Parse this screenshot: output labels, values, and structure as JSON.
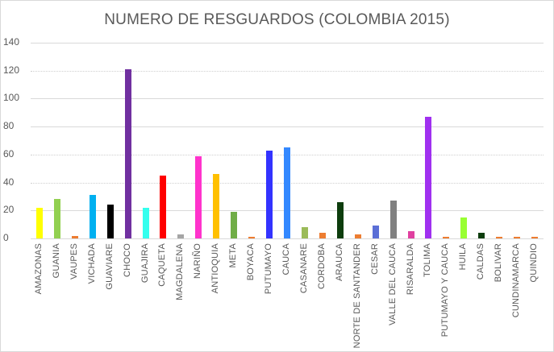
{
  "chart_data": {
    "type": "bar",
    "title": "NUMERO DE RESGUARDOS (COLOMBIA 2015)",
    "xlabel": "",
    "ylabel": "",
    "ylim": [
      0,
      140
    ],
    "yticks": [
      0,
      20,
      40,
      60,
      80,
      100,
      120,
      140
    ],
    "grid": true,
    "legend": "none",
    "categories": [
      "AMAZONAS",
      "GUANIA",
      "VAUPES",
      "VICHADA",
      "GUAVIARE",
      "CHOCO",
      "GUAJIRA",
      "CAQUETA",
      "MAGDALENA",
      "NARIÑO",
      "ANTIOQUIA",
      "META",
      "BOYACA",
      "PUTUMAYO",
      "CAUCA",
      "CASANARE",
      "CORDOBA",
      "ARAUCA",
      "NORTE DE SANTANDER",
      "CESAR",
      "VALLE DEL CAUCA",
      "RISARALDA",
      "TOLIMA",
      "PUTUMAYO Y CAUCA",
      "HUILA",
      "CALDAS",
      "BOLIVAR",
      "CUNDINAMARCA",
      "QUINDIO"
    ],
    "values": [
      22,
      28,
      2,
      31,
      24,
      121,
      22,
      45,
      3,
      59,
      46,
      19,
      1,
      63,
      65,
      8,
      4,
      26,
      3,
      9,
      27,
      5,
      87,
      1,
      15,
      4,
      1,
      1,
      1
    ],
    "colors": [
      "#ffff00",
      "#92d050",
      "#ed7d31",
      "#00b0f0",
      "#000000",
      "#7030a0",
      "#33ffee",
      "#ff0000",
      "#a5a5a5",
      "#ff33cc",
      "#ffc000",
      "#70ad47",
      "#ed7d31",
      "#3333ff",
      "#3388ff",
      "#9bbb59",
      "#ed7d31",
      "#0d3d0d",
      "#ed7d31",
      "#5b6fd6",
      "#808080",
      "#e040a0",
      "#a030f0",
      "#ed7d31",
      "#99ff33",
      "#0d3d0d",
      "#ed7d31",
      "#ed7d31",
      "#ed7d31"
    ]
  }
}
